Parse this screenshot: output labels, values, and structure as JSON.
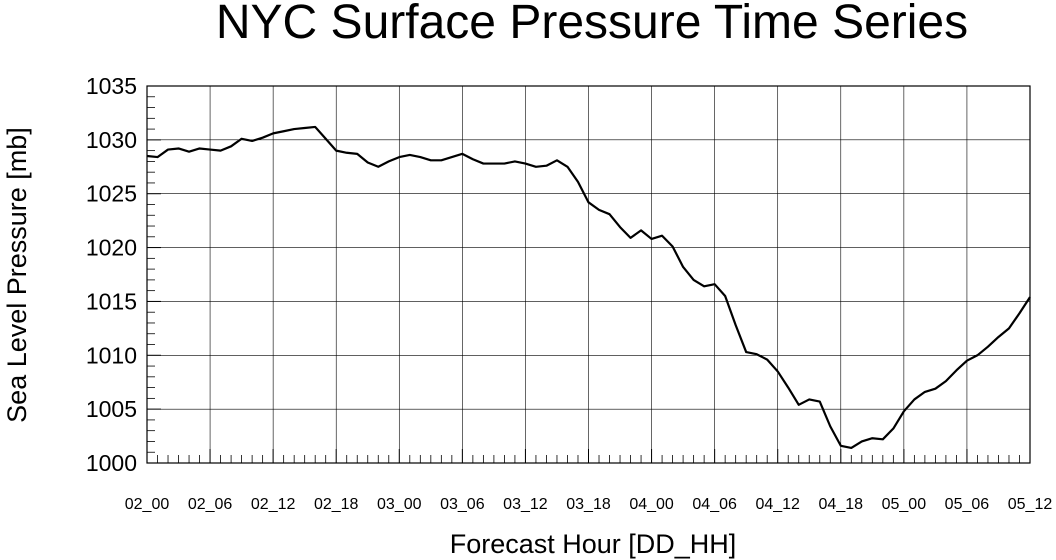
{
  "chart_data": {
    "type": "line",
    "title": "NYC Surface Pressure Time Series",
    "xlabel": "Forecast Hour [DD_HH]",
    "ylabel": "Sea Level Pressure [mb]",
    "xlim": [
      0,
      84
    ],
    "ylim": [
      1000,
      1035
    ],
    "y_ticks": [
      1000,
      1005,
      1010,
      1015,
      1020,
      1025,
      1030,
      1035
    ],
    "x_tick_positions": [
      0,
      6,
      12,
      18,
      24,
      30,
      36,
      42,
      48,
      54,
      60,
      66,
      72,
      78,
      84
    ],
    "x_tick_labels": [
      "02_00",
      "02_06",
      "02_12",
      "02_18",
      "03_00",
      "03_06",
      "03_12",
      "03_18",
      "04_00",
      "04_06",
      "04_12",
      "04_18",
      "05_00",
      "05_06",
      "05_12"
    ],
    "grid": true,
    "line_color": "#000000",
    "series": [
      {
        "x": [
          0,
          1,
          2,
          3,
          4,
          5,
          6,
          7,
          8,
          9,
          10,
          11,
          12,
          13,
          14,
          15,
          16,
          17,
          18,
          19,
          20,
          21,
          22,
          23,
          24,
          25,
          26,
          27,
          28,
          29,
          30,
          31,
          32,
          33,
          34,
          35,
          36,
          37,
          38,
          39,
          40,
          41,
          42,
          43,
          44,
          45,
          46,
          47,
          48,
          49,
          50,
          51,
          52,
          53,
          54,
          55,
          56,
          57,
          58,
          59,
          60,
          61,
          62,
          63,
          64,
          65,
          66,
          67,
          68,
          69,
          70,
          71,
          72,
          73,
          74,
          75,
          76,
          77,
          78,
          79,
          80,
          81,
          82,
          83,
          84
        ],
        "values": [
          1028.5,
          1028.4,
          1029.1,
          1029.2,
          1028.9,
          1029.2,
          1029.1,
          1029.0,
          1029.4,
          1030.1,
          1029.9,
          1030.2,
          1030.6,
          1030.8,
          1031.0,
          1031.1,
          1031.2,
          1030.1,
          1029.0,
          1028.8,
          1028.7,
          1027.9,
          1027.5,
          1028.0,
          1028.4,
          1028.6,
          1028.4,
          1028.1,
          1028.1,
          1028.4,
          1028.7,
          1028.2,
          1027.8,
          1027.8,
          1027.8,
          1028.0,
          1027.8,
          1027.5,
          1027.6,
          1028.1,
          1027.5,
          1026.1,
          1024.2,
          1023.5,
          1023.1,
          1021.9,
          1020.9,
          1021.6,
          1020.8,
          1021.1,
          1020.1,
          1018.2,
          1017.0,
          1016.4,
          1016.6,
          1015.5,
          1012.8,
          1010.3,
          1010.1,
          1009.6,
          1008.5,
          1007.0,
          1005.4,
          1005.9,
          1005.7,
          1003.4,
          1001.6,
          1001.4,
          1002.0,
          1002.3,
          1002.2,
          1003.2,
          1004.8,
          1005.9,
          1006.6,
          1006.9,
          1007.6,
          1008.6,
          1009.5,
          1010.0,
          1010.8,
          1011.7,
          1012.5,
          1013.9,
          1015.4
        ]
      }
    ]
  }
}
